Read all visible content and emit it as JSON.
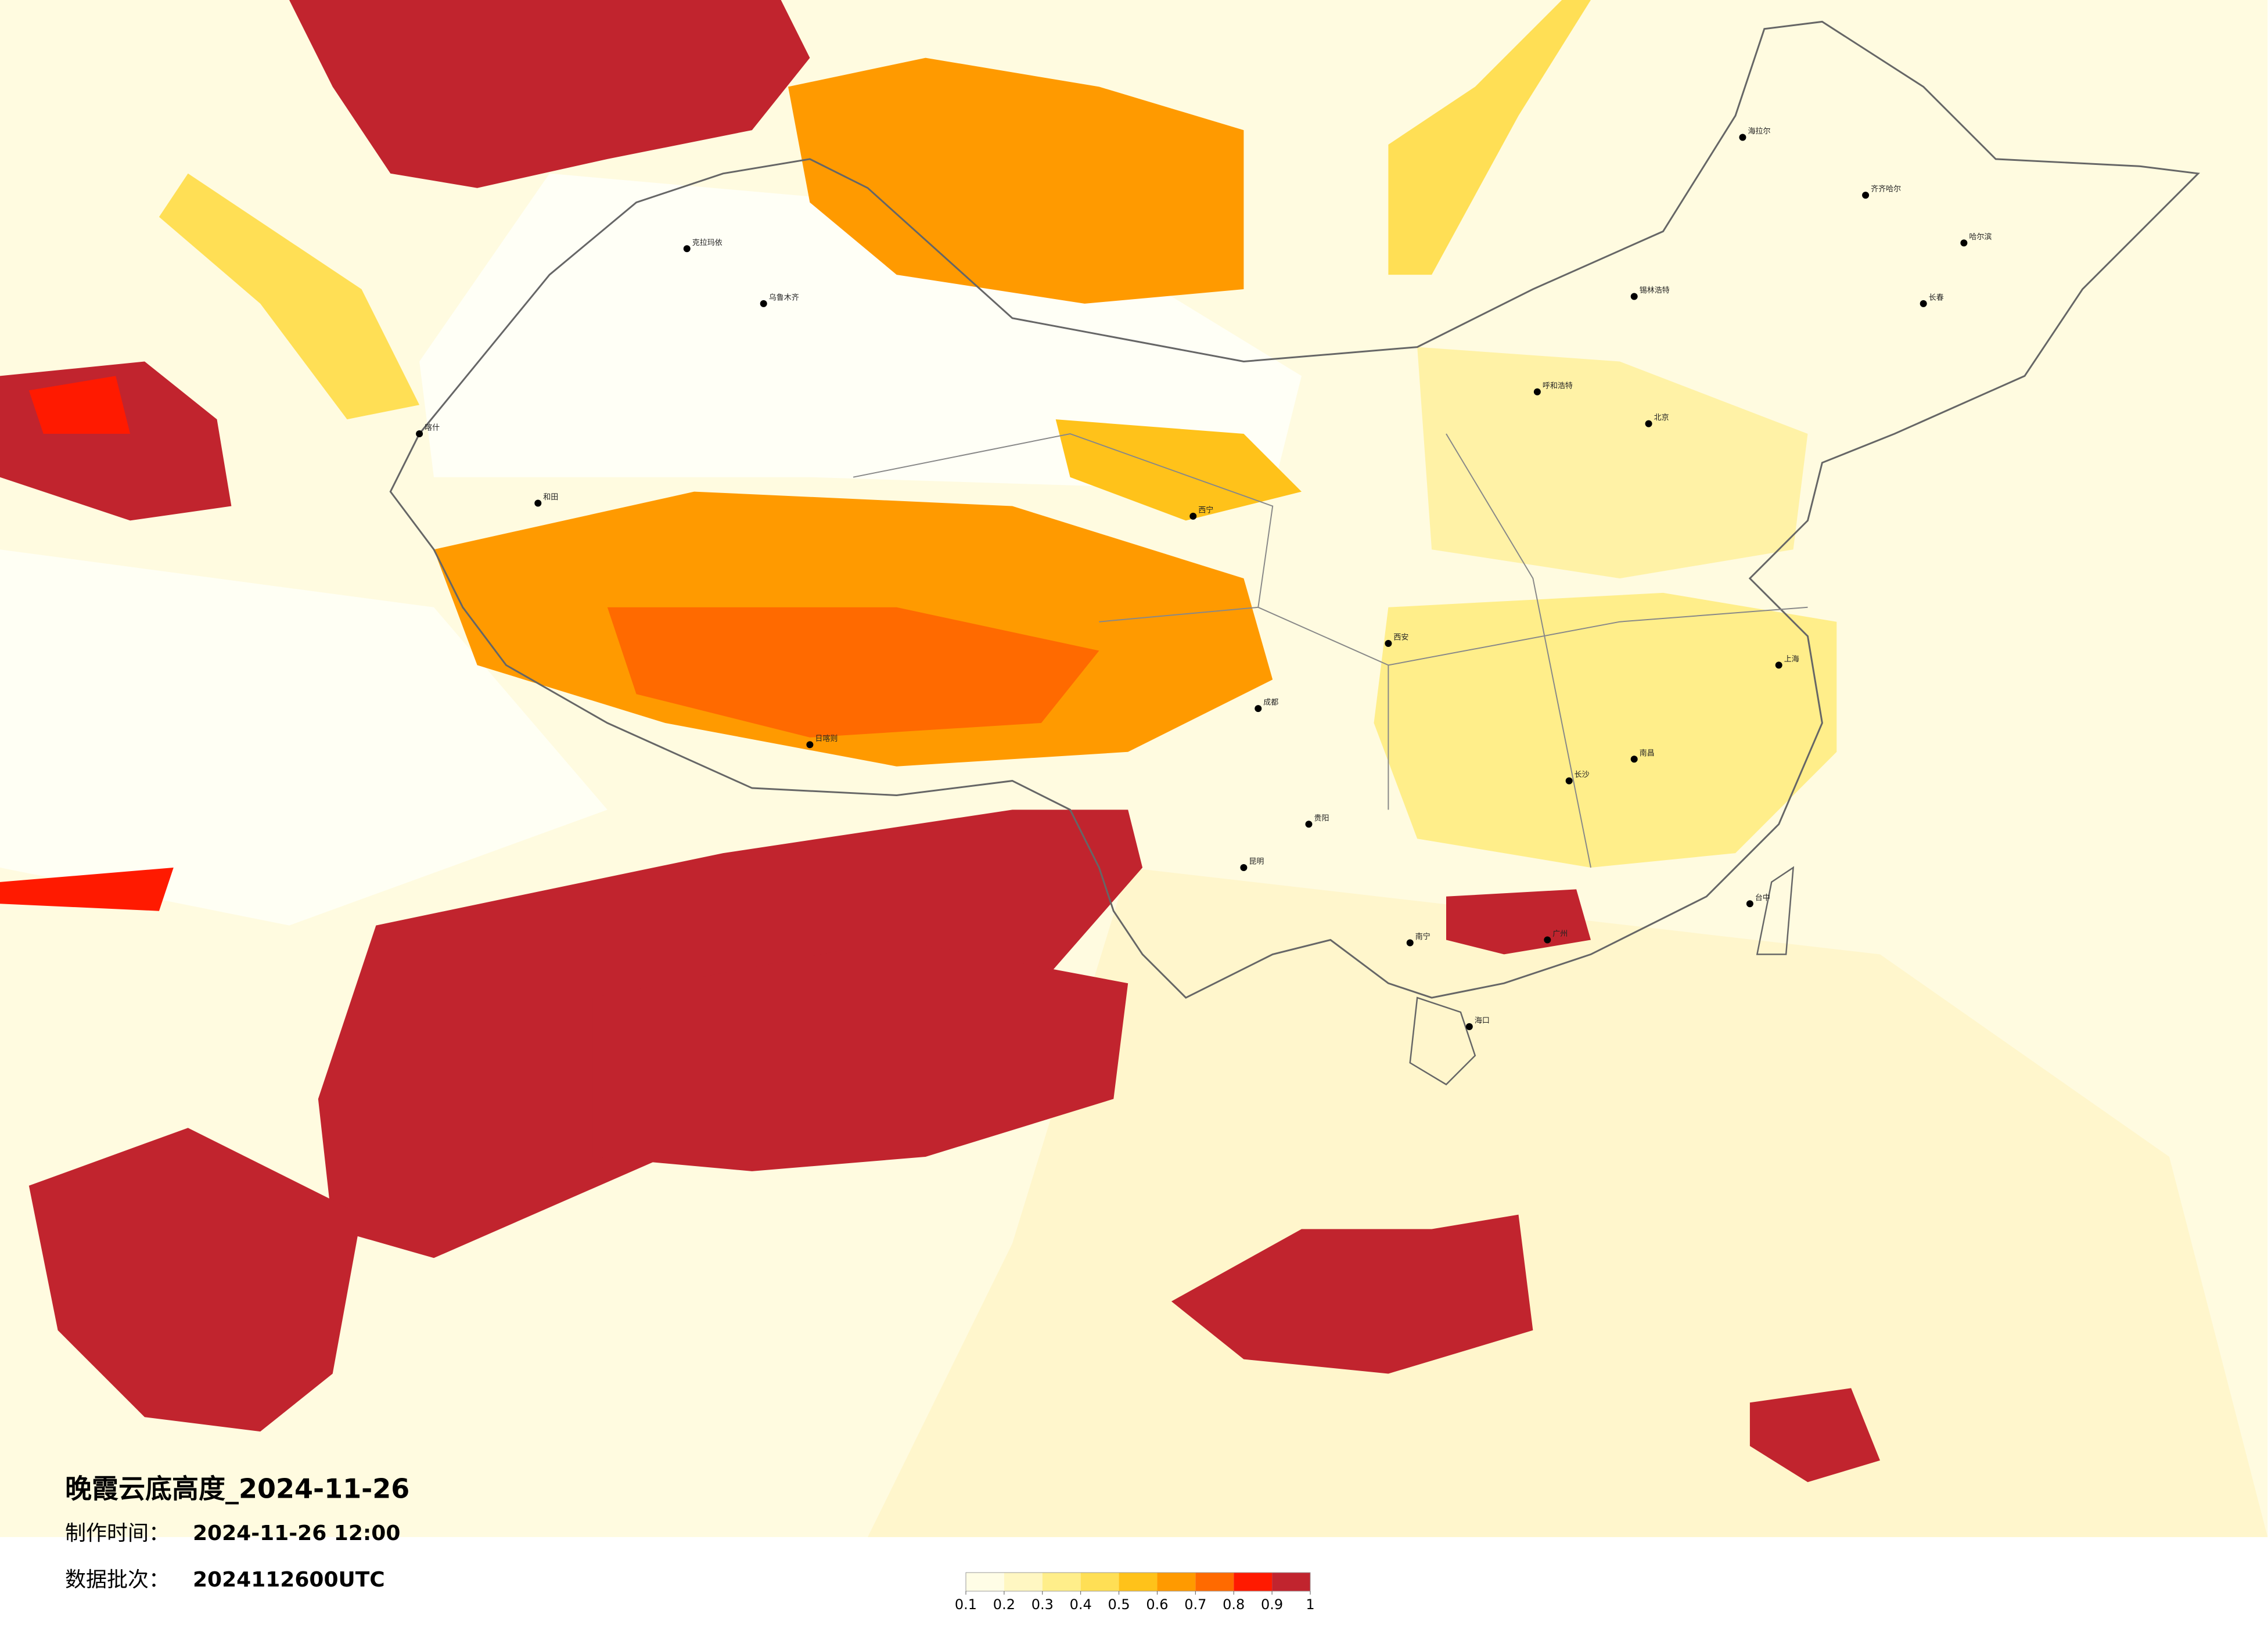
{
  "header": {
    "title": "晚霞云底高度_2024-11-26",
    "made_label": "制作时间：",
    "made_value": "2024-11-26 12:00",
    "batch_label": "数据批次：",
    "batch_value": "2024112600UTC"
  },
  "legend": {
    "ticks": [
      0.1,
      0.2,
      0.3,
      0.4,
      0.5,
      0.6,
      0.7,
      0.8,
      0.9,
      1
    ],
    "colors": [
      "#fffde6",
      "#fff7c2",
      "#ffee8a",
      "#ffdf55",
      "#ffc21a",
      "#ff9a00",
      "#ff6a00",
      "#ff1a00",
      "#c1242e"
    ]
  },
  "cities": [
    "克拉玛依",
    "乌鲁木齐",
    "喀什",
    "和田",
    "日喀则",
    "西宁",
    "呼和浩特",
    "北京",
    "哈尔滨",
    "长春",
    "齐齐哈尔",
    "海拉尔",
    "锡林浩特",
    "上海",
    "南昌",
    "长沙",
    "广州",
    "南宁",
    "海口",
    "昆明",
    "贵阳",
    "成都",
    "台中",
    "西安"
  ]
}
